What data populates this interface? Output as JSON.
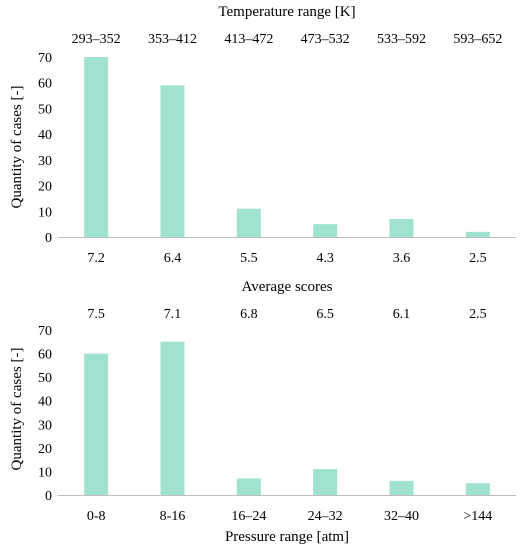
{
  "colors": {
    "bar": "#9fe2cf",
    "axis": "#bfbfbf",
    "text": "#000000"
  },
  "chart_data": [
    {
      "type": "bar",
      "top_axis_title": "Temperature range [K]",
      "top_axis_labels": [
        "293–352",
        "353–412",
        "413–472",
        "473–532",
        "533–592",
        "593–652"
      ],
      "categories": [
        "7.2",
        "6.4",
        "5.5",
        "4.3",
        "3.6",
        "2.5"
      ],
      "values": [
        70,
        59,
        11,
        5,
        7,
        2
      ],
      "ylabel": "Quantity of cases [-]",
      "ylim": [
        0,
        70
      ],
      "yticks": [
        0,
        10,
        20,
        30,
        40,
        50,
        60,
        70
      ],
      "grid": false
    },
    {
      "type": "bar",
      "top_axis_title": "Average scores",
      "top_axis_labels": [
        "7.5",
        "7.1",
        "6.8",
        "6.5",
        "6.1",
        "2.5"
      ],
      "categories": [
        "0-8",
        "8-16",
        "16–24",
        "24–32",
        "32–40",
        ">144"
      ],
      "values": [
        60,
        65,
        7,
        11,
        6,
        5
      ],
      "xlabel": "Pressure range [atm]",
      "ylabel": "Quantity of cases [-]",
      "ylim": [
        0,
        70
      ],
      "yticks": [
        0,
        10,
        20,
        30,
        40,
        50,
        60,
        70
      ],
      "grid": false
    }
  ]
}
